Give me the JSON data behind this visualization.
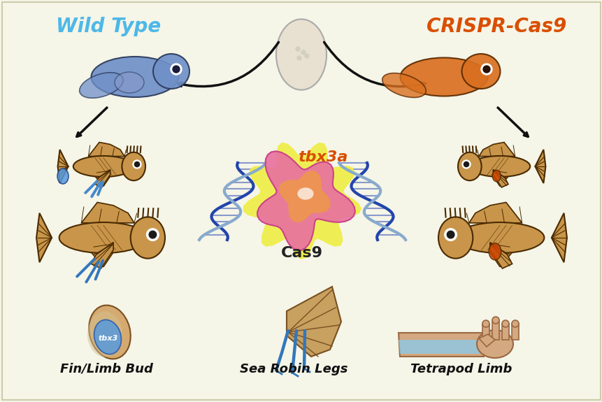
{
  "background_color": "#f5f5e8",
  "title_left": "Wild Type",
  "title_left_color": "#4db8e8",
  "title_right": "CRISPR-Cas9",
  "title_right_color": "#d94f00",
  "tbx3a_label": "tbx3a",
  "tbx3a_color": "#d94f00",
  "cas9_label": "Cas9",
  "cas9_color": "#222222",
  "bottom_labels": [
    "Fin/Limb Bud",
    "Sea Robin Legs",
    "Tetrapod Limb"
  ],
  "bottom_label_color": "#111111",
  "arrow_color": "#111111",
  "fish_body_color": "#c8954a",
  "fish_outline_color": "#4a2a00",
  "embryo_color_left": "#7090c8",
  "embryo_color_right": "#d97020",
  "egg_color": "#e8e0d0",
  "dna_color1": "#2244aa",
  "dna_color2": "#88aacc",
  "cas9_protein_color": "#e870a0",
  "leg_color": "#4488cc",
  "fin_bud_color": "#c8a060",
  "hand_color": "#d4a880"
}
